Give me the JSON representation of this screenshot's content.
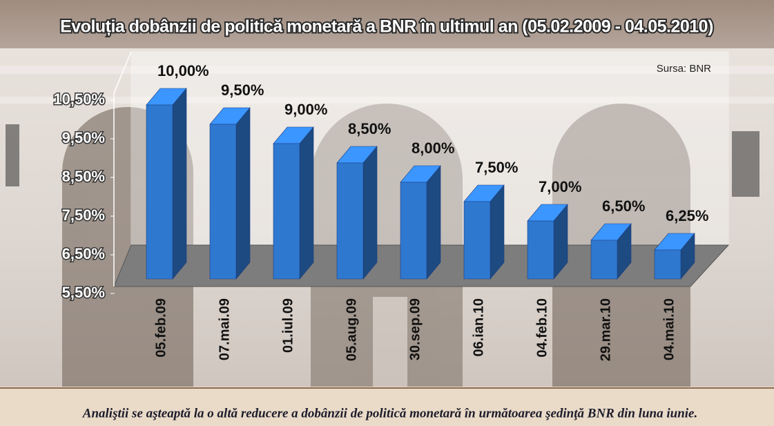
{
  "chart_data": {
    "type": "bar3d",
    "title": "Evoluția dobânzii de politică monetară a BNR în ultimul an (05.02.2009 - 04.05.2010)",
    "source": "Sursa: BNR",
    "caption": "Analiştii se aşteaptă la o altă reducere a dobânzii de politică monetară în următoarea şedinţă BNR din luna iunie.",
    "categories": [
      "05.feb.09",
      "07.mai.09",
      "01.iul.09",
      "05.aug.09",
      "30.sep.09",
      "06.ian.10",
      "04.feb.10",
      "29.mar.10",
      "04.mai.10"
    ],
    "values": [
      10,
      9.5,
      9,
      8.5,
      8,
      7.5,
      7,
      6.5,
      6.25
    ],
    "value_labels": [
      "10,00%",
      "9,50%",
      "9,00%",
      "8,50%",
      "8,00%",
      "7,50%",
      "7,00%",
      "6,50%",
      "6,25%"
    ],
    "color": "#2f78cf",
    "ylim": [
      5.5,
      10.5
    ],
    "yticks": [
      {
        "value": 5.5,
        "label": "5,50%"
      },
      {
        "value": 6.5,
        "label": "6,50%"
      },
      {
        "value": 7.5,
        "label": "7,50%"
      },
      {
        "value": 8.5,
        "label": "8,50%"
      },
      {
        "value": 9.5,
        "label": "9,50%"
      },
      {
        "value": 10.5,
        "label": "10,50%"
      }
    ]
  }
}
